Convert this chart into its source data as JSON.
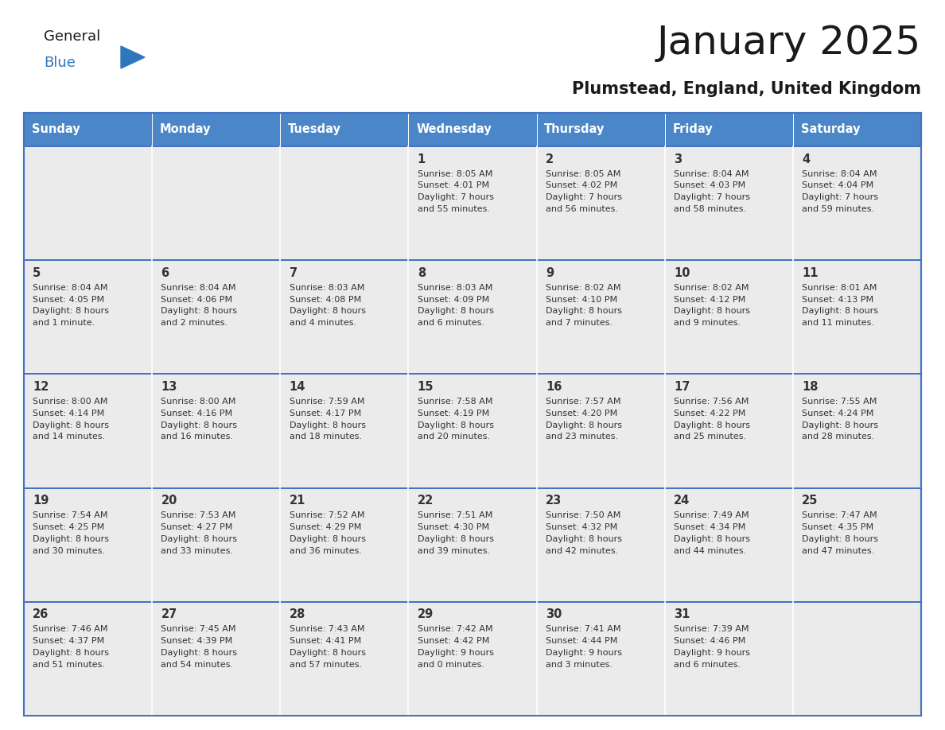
{
  "title": "January 2025",
  "subtitle": "Plumstead, England, United Kingdom",
  "days_of_week": [
    "Sunday",
    "Monday",
    "Tuesday",
    "Wednesday",
    "Thursday",
    "Friday",
    "Saturday"
  ],
  "header_bg": "#4a86c8",
  "header_text": "#ffffff",
  "cell_bg_light": "#ebebeb",
  "border_color": "#4472c4",
  "text_color": "#333333",
  "title_color": "#1a1a1a",
  "subtitle_color": "#1a1a1a",
  "general_color": "#1a1a1a",
  "blue_color": "#2e77bc",
  "calendar_data": [
    [
      {
        "day": "",
        "lines": []
      },
      {
        "day": "",
        "lines": []
      },
      {
        "day": "",
        "lines": []
      },
      {
        "day": "1",
        "lines": [
          "Sunrise: 8:05 AM",
          "Sunset: 4:01 PM",
          "Daylight: 7 hours",
          "and 55 minutes."
        ]
      },
      {
        "day": "2",
        "lines": [
          "Sunrise: 8:05 AM",
          "Sunset: 4:02 PM",
          "Daylight: 7 hours",
          "and 56 minutes."
        ]
      },
      {
        "day": "3",
        "lines": [
          "Sunrise: 8:04 AM",
          "Sunset: 4:03 PM",
          "Daylight: 7 hours",
          "and 58 minutes."
        ]
      },
      {
        "day": "4",
        "lines": [
          "Sunrise: 8:04 AM",
          "Sunset: 4:04 PM",
          "Daylight: 7 hours",
          "and 59 minutes."
        ]
      }
    ],
    [
      {
        "day": "5",
        "lines": [
          "Sunrise: 8:04 AM",
          "Sunset: 4:05 PM",
          "Daylight: 8 hours",
          "and 1 minute."
        ]
      },
      {
        "day": "6",
        "lines": [
          "Sunrise: 8:04 AM",
          "Sunset: 4:06 PM",
          "Daylight: 8 hours",
          "and 2 minutes."
        ]
      },
      {
        "day": "7",
        "lines": [
          "Sunrise: 8:03 AM",
          "Sunset: 4:08 PM",
          "Daylight: 8 hours",
          "and 4 minutes."
        ]
      },
      {
        "day": "8",
        "lines": [
          "Sunrise: 8:03 AM",
          "Sunset: 4:09 PM",
          "Daylight: 8 hours",
          "and 6 minutes."
        ]
      },
      {
        "day": "9",
        "lines": [
          "Sunrise: 8:02 AM",
          "Sunset: 4:10 PM",
          "Daylight: 8 hours",
          "and 7 minutes."
        ]
      },
      {
        "day": "10",
        "lines": [
          "Sunrise: 8:02 AM",
          "Sunset: 4:12 PM",
          "Daylight: 8 hours",
          "and 9 minutes."
        ]
      },
      {
        "day": "11",
        "lines": [
          "Sunrise: 8:01 AM",
          "Sunset: 4:13 PM",
          "Daylight: 8 hours",
          "and 11 minutes."
        ]
      }
    ],
    [
      {
        "day": "12",
        "lines": [
          "Sunrise: 8:00 AM",
          "Sunset: 4:14 PM",
          "Daylight: 8 hours",
          "and 14 minutes."
        ]
      },
      {
        "day": "13",
        "lines": [
          "Sunrise: 8:00 AM",
          "Sunset: 4:16 PM",
          "Daylight: 8 hours",
          "and 16 minutes."
        ]
      },
      {
        "day": "14",
        "lines": [
          "Sunrise: 7:59 AM",
          "Sunset: 4:17 PM",
          "Daylight: 8 hours",
          "and 18 minutes."
        ]
      },
      {
        "day": "15",
        "lines": [
          "Sunrise: 7:58 AM",
          "Sunset: 4:19 PM",
          "Daylight: 8 hours",
          "and 20 minutes."
        ]
      },
      {
        "day": "16",
        "lines": [
          "Sunrise: 7:57 AM",
          "Sunset: 4:20 PM",
          "Daylight: 8 hours",
          "and 23 minutes."
        ]
      },
      {
        "day": "17",
        "lines": [
          "Sunrise: 7:56 AM",
          "Sunset: 4:22 PM",
          "Daylight: 8 hours",
          "and 25 minutes."
        ]
      },
      {
        "day": "18",
        "lines": [
          "Sunrise: 7:55 AM",
          "Sunset: 4:24 PM",
          "Daylight: 8 hours",
          "and 28 minutes."
        ]
      }
    ],
    [
      {
        "day": "19",
        "lines": [
          "Sunrise: 7:54 AM",
          "Sunset: 4:25 PM",
          "Daylight: 8 hours",
          "and 30 minutes."
        ]
      },
      {
        "day": "20",
        "lines": [
          "Sunrise: 7:53 AM",
          "Sunset: 4:27 PM",
          "Daylight: 8 hours",
          "and 33 minutes."
        ]
      },
      {
        "day": "21",
        "lines": [
          "Sunrise: 7:52 AM",
          "Sunset: 4:29 PM",
          "Daylight: 8 hours",
          "and 36 minutes."
        ]
      },
      {
        "day": "22",
        "lines": [
          "Sunrise: 7:51 AM",
          "Sunset: 4:30 PM",
          "Daylight: 8 hours",
          "and 39 minutes."
        ]
      },
      {
        "day": "23",
        "lines": [
          "Sunrise: 7:50 AM",
          "Sunset: 4:32 PM",
          "Daylight: 8 hours",
          "and 42 minutes."
        ]
      },
      {
        "day": "24",
        "lines": [
          "Sunrise: 7:49 AM",
          "Sunset: 4:34 PM",
          "Daylight: 8 hours",
          "and 44 minutes."
        ]
      },
      {
        "day": "25",
        "lines": [
          "Sunrise: 7:47 AM",
          "Sunset: 4:35 PM",
          "Daylight: 8 hours",
          "and 47 minutes."
        ]
      }
    ],
    [
      {
        "day": "26",
        "lines": [
          "Sunrise: 7:46 AM",
          "Sunset: 4:37 PM",
          "Daylight: 8 hours",
          "and 51 minutes."
        ]
      },
      {
        "day": "27",
        "lines": [
          "Sunrise: 7:45 AM",
          "Sunset: 4:39 PM",
          "Daylight: 8 hours",
          "and 54 minutes."
        ]
      },
      {
        "day": "28",
        "lines": [
          "Sunrise: 7:43 AM",
          "Sunset: 4:41 PM",
          "Daylight: 8 hours",
          "and 57 minutes."
        ]
      },
      {
        "day": "29",
        "lines": [
          "Sunrise: 7:42 AM",
          "Sunset: 4:42 PM",
          "Daylight: 9 hours",
          "and 0 minutes."
        ]
      },
      {
        "day": "30",
        "lines": [
          "Sunrise: 7:41 AM",
          "Sunset: 4:44 PM",
          "Daylight: 9 hours",
          "and 3 minutes."
        ]
      },
      {
        "day": "31",
        "lines": [
          "Sunrise: 7:39 AM",
          "Sunset: 4:46 PM",
          "Daylight: 9 hours",
          "and 6 minutes."
        ]
      },
      {
        "day": "",
        "lines": []
      }
    ]
  ]
}
